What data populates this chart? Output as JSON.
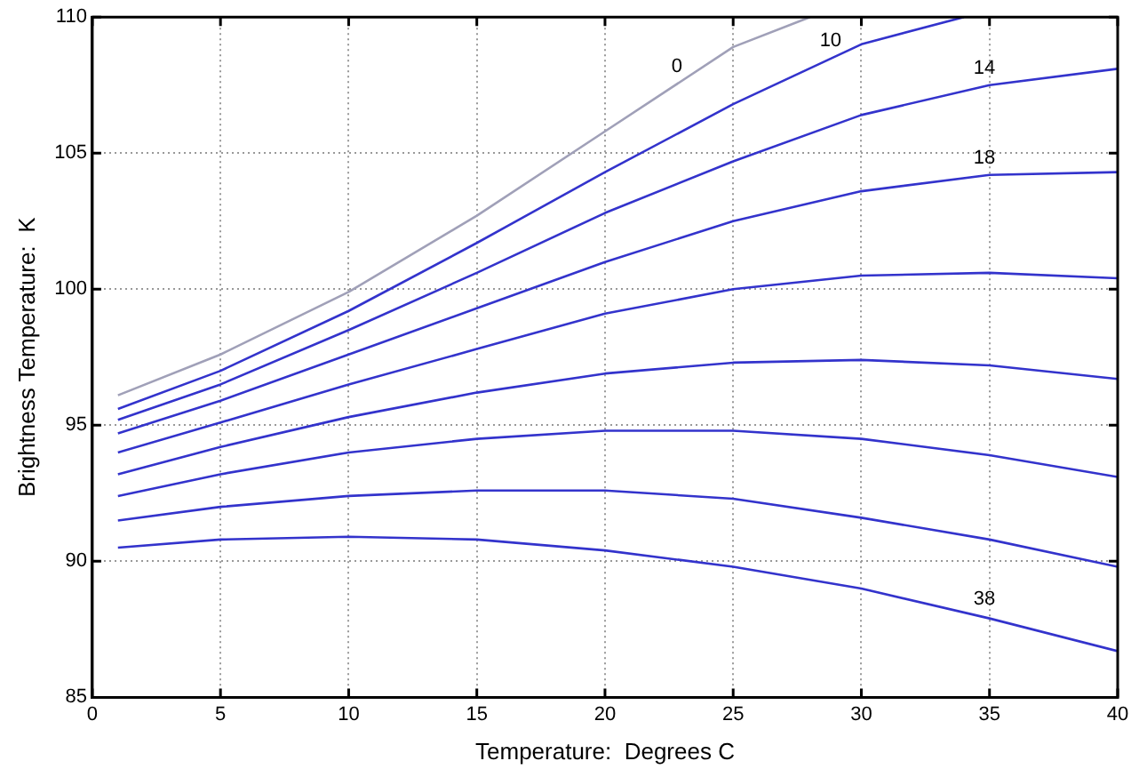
{
  "chart_data": {
    "type": "line",
    "xlabel": "Temperature:  Degrees C",
    "ylabel": "Brightness Temperature:  K",
    "xlim": [
      0,
      40
    ],
    "xticks": [
      0,
      5,
      10,
      15,
      20,
      25,
      30,
      35,
      40
    ],
    "ylim": [
      85,
      110
    ],
    "yticks": [
      85,
      90,
      95,
      100,
      105,
      110
    ],
    "grid": true,
    "marker": "none",
    "line_style": "solid",
    "series": [
      {
        "name": "0",
        "color": "#a0a0b8",
        "x": [
          1,
          5,
          10,
          15,
          20,
          25,
          28
        ],
        "values": [
          96.1,
          97.6,
          99.9,
          102.7,
          105.8,
          108.9,
          110
        ]
      },
      {
        "name": "10",
        "color": "#3333cc",
        "x": [
          1,
          5,
          10,
          15,
          20,
          25,
          30,
          34
        ],
        "values": [
          95.6,
          97.0,
          99.2,
          101.7,
          104.3,
          106.8,
          109.0,
          110
        ]
      },
      {
        "name": "14",
        "color": "#3333cc",
        "x": [
          1,
          5,
          10,
          15,
          20,
          25,
          30,
          35,
          40
        ],
        "values": [
          95.2,
          96.5,
          98.5,
          100.6,
          102.8,
          104.7,
          106.4,
          107.5,
          108.1
        ]
      },
      {
        "name": "18",
        "color": "#3333cc",
        "x": [
          1,
          5,
          10,
          15,
          20,
          25,
          30,
          35,
          40
        ],
        "values": [
          94.7,
          95.9,
          97.6,
          99.3,
          101.0,
          102.5,
          103.6,
          104.2,
          104.3
        ]
      },
      {
        "color": "#3333cc",
        "x": [
          1,
          5,
          10,
          15,
          20,
          25,
          30,
          35,
          40
        ],
        "values": [
          94.0,
          95.1,
          96.5,
          97.8,
          99.1,
          100.0,
          100.5,
          100.6,
          100.4
        ]
      },
      {
        "color": "#3333cc",
        "x": [
          1,
          5,
          10,
          15,
          20,
          25,
          30,
          35,
          40
        ],
        "values": [
          93.2,
          94.2,
          95.3,
          96.2,
          96.9,
          97.3,
          97.4,
          97.2,
          96.7
        ]
      },
      {
        "color": "#3333cc",
        "x": [
          1,
          5,
          10,
          15,
          20,
          25,
          30,
          35,
          40
        ],
        "values": [
          92.4,
          93.2,
          94.0,
          94.5,
          94.8,
          94.8,
          94.5,
          93.9,
          93.1
        ]
      },
      {
        "color": "#3333cc",
        "x": [
          1,
          5,
          10,
          15,
          20,
          25,
          30,
          35,
          40
        ],
        "values": [
          91.5,
          92.0,
          92.4,
          92.6,
          92.6,
          92.3,
          91.6,
          90.8,
          89.8
        ]
      },
      {
        "name": "38",
        "color": "#3333cc",
        "x": [
          1,
          5,
          10,
          15,
          20,
          25,
          30,
          35,
          40
        ],
        "values": [
          90.5,
          90.8,
          90.9,
          90.8,
          90.4,
          89.8,
          89.0,
          87.9,
          86.7
        ]
      }
    ]
  }
}
